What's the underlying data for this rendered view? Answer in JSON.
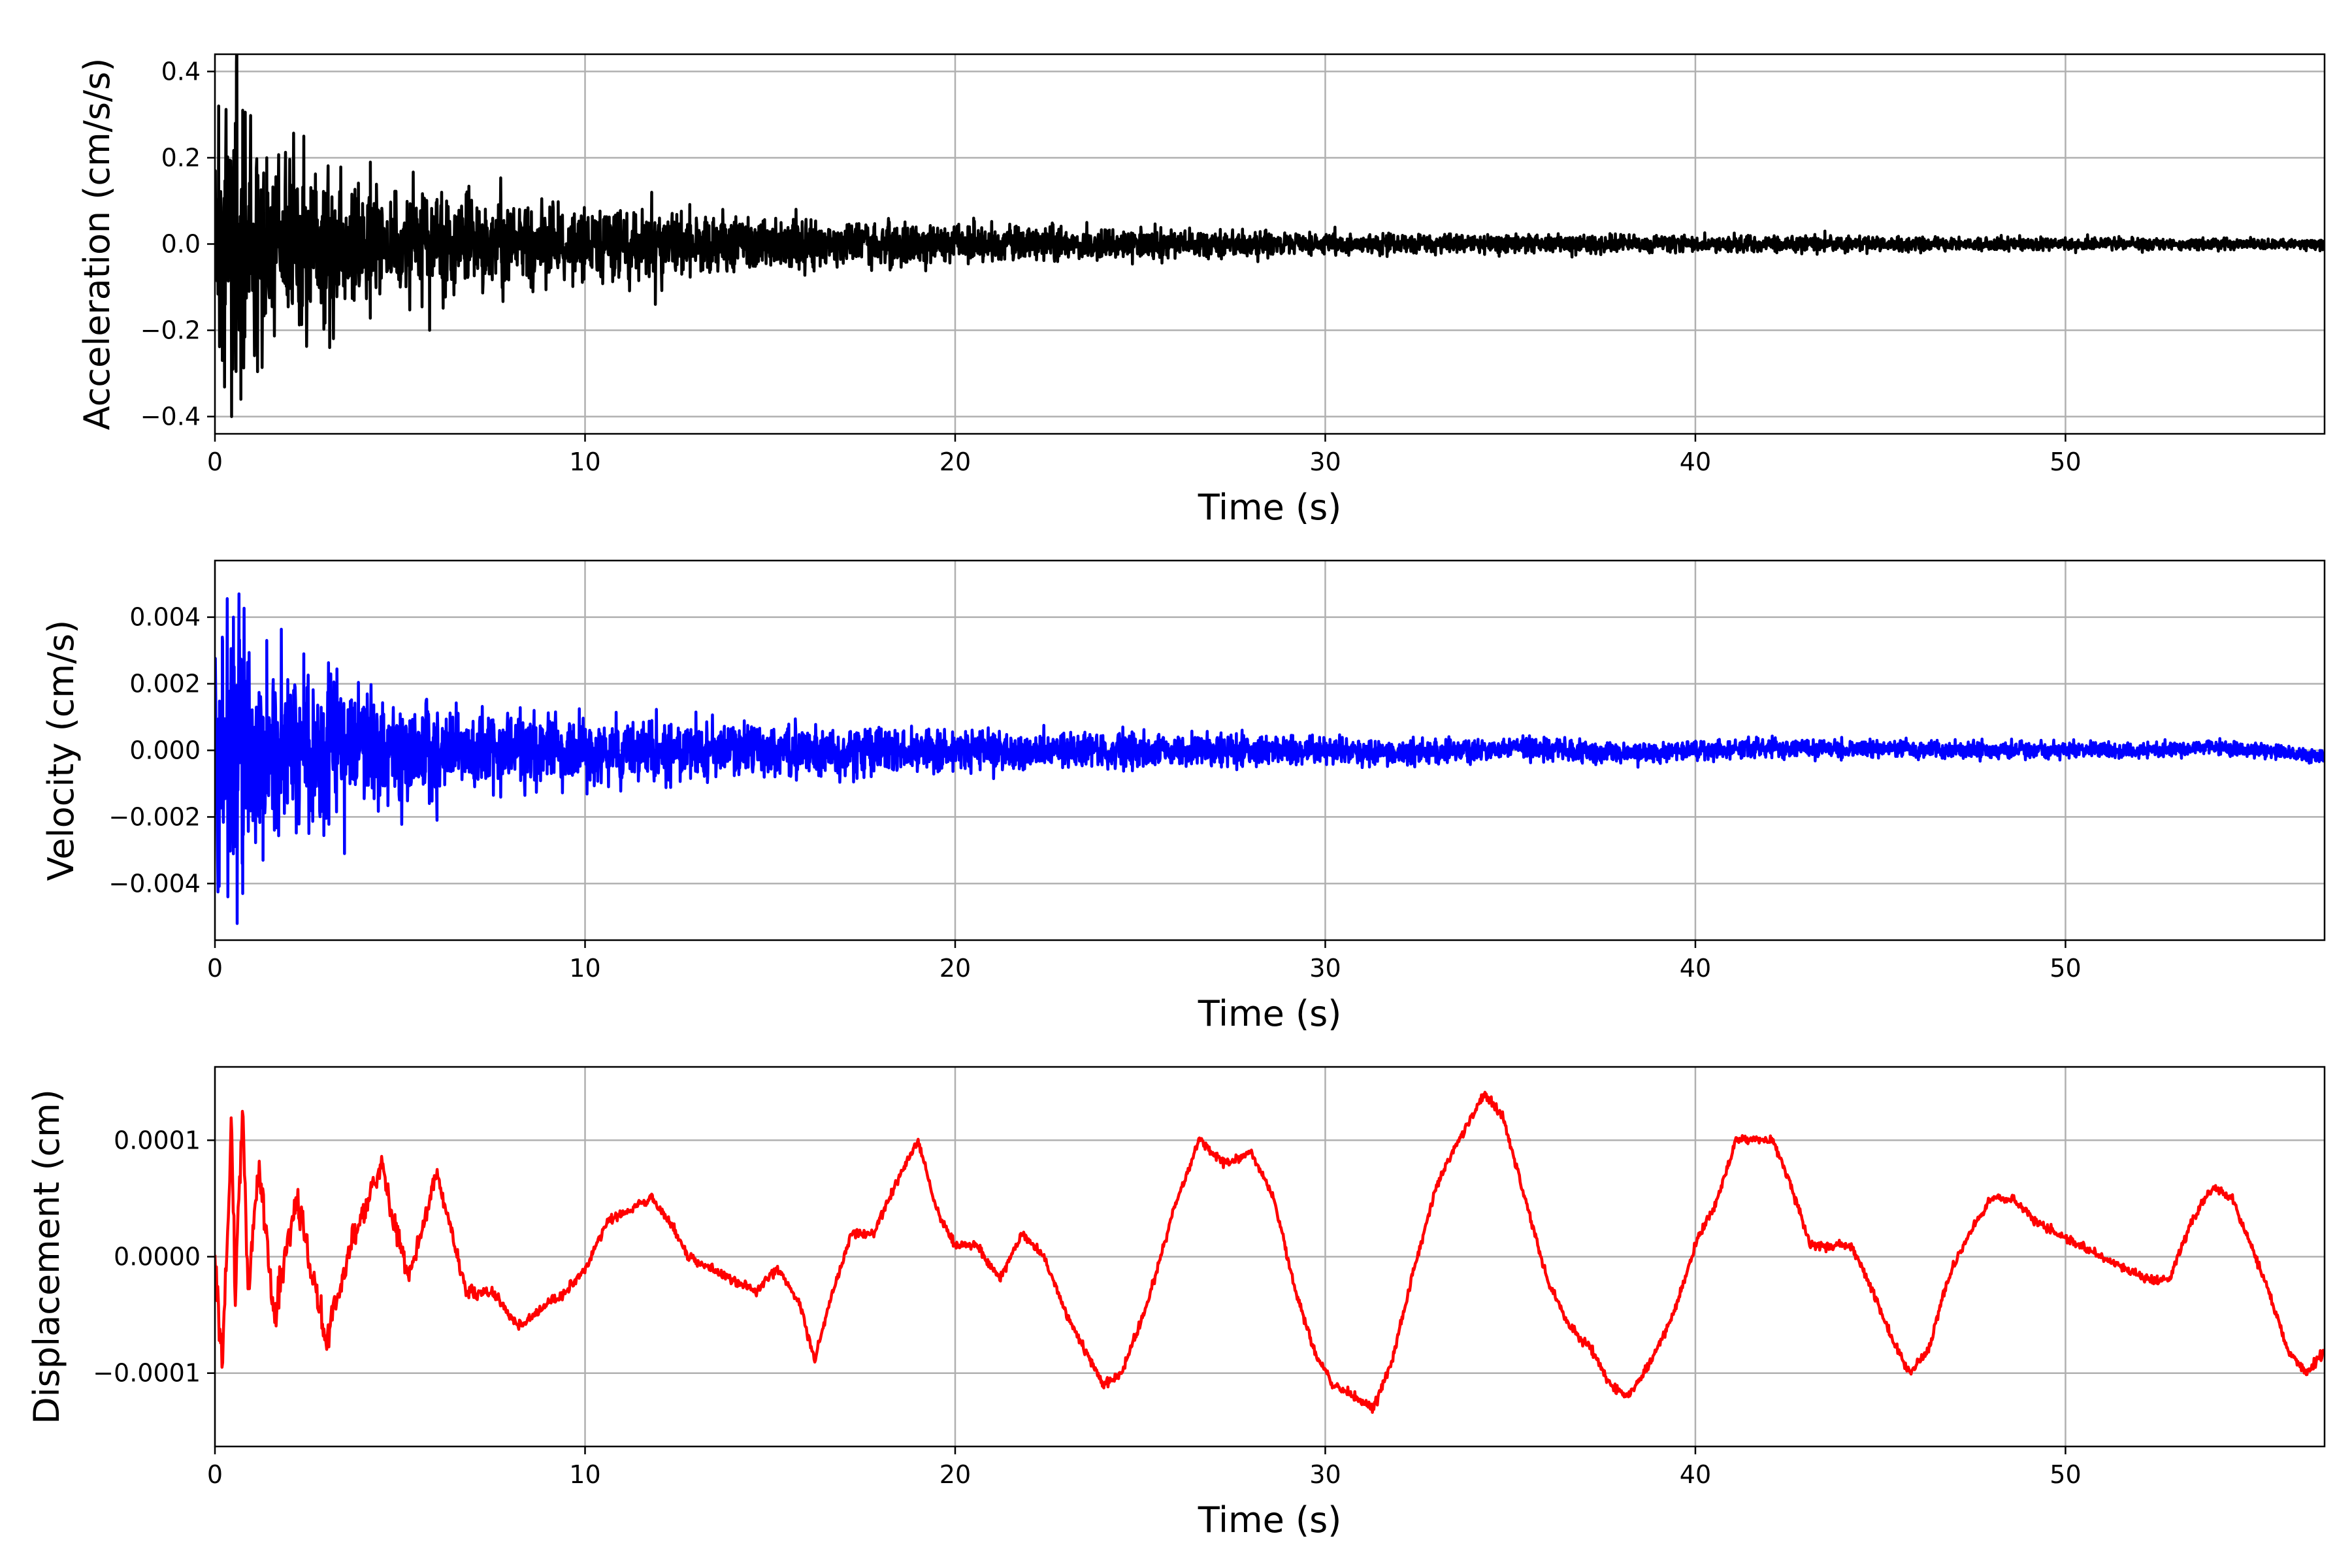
{
  "chart_data": [
    {
      "type": "line",
      "xlabel": "Time (s)",
      "ylabel": "Acceleration (cm/s/s)",
      "xlim": [
        0,
        57
      ],
      "ylim": [
        -0.44,
        0.44
      ],
      "x_ticks": [
        0,
        10,
        20,
        30,
        40,
        50
      ],
      "y_ticks": [
        -0.4,
        -0.2,
        0.0,
        0.2,
        0.4
      ],
      "y_tick_labels": [
        "−0.4",
        "−0.2",
        "0.0",
        "0.2",
        "0.4"
      ],
      "grid": true,
      "color": "#000000",
      "envelope": [
        [
          0,
          0.33
        ],
        [
          0.6,
          0.38
        ],
        [
          1.5,
          0.24
        ],
        [
          3,
          0.2
        ],
        [
          5,
          0.15
        ],
        [
          8,
          0.12
        ],
        [
          10,
          0.1
        ],
        [
          12,
          0.09
        ],
        [
          15,
          0.07
        ],
        [
          20,
          0.05
        ],
        [
          25,
          0.04
        ],
        [
          30,
          0.03
        ],
        [
          40,
          0.022
        ],
        [
          50,
          0.017
        ],
        [
          57,
          0.015
        ]
      ],
      "peaks": [
        [
          0.1,
          0.32
        ],
        [
          0.2,
          -0.27
        ],
        [
          0.45,
          -0.4
        ],
        [
          0.55,
          0.28
        ],
        [
          0.7,
          -0.36
        ],
        [
          0.75,
          0.31
        ],
        [
          1.4,
          0.2
        ],
        [
          2.4,
          0.25
        ],
        [
          3.1,
          -0.24
        ],
        [
          4.2,
          0.19
        ],
        [
          5.8,
          -0.2
        ],
        [
          11.8,
          0.12
        ],
        [
          11.9,
          -0.14
        ],
        [
          20.5,
          0.06
        ],
        [
          43.5,
          0.03
        ]
      ]
    },
    {
      "type": "line",
      "xlabel": "Time (s)",
      "ylabel": "Velocity (cm/s)",
      "xlim": [
        0,
        57
      ],
      "ylim": [
        -0.0057,
        0.0057
      ],
      "x_ticks": [
        0,
        10,
        20,
        30,
        40,
        50
      ],
      "y_ticks": [
        -0.004,
        -0.002,
        0.0,
        0.002,
        0.004
      ],
      "y_tick_labels": [
        "−0.004",
        "−0.002",
        "0.000",
        "0.002",
        "0.004"
      ],
      "grid": true,
      "color": "#0000ff",
      "envelope": [
        [
          0,
          0.0045
        ],
        [
          0.6,
          0.005
        ],
        [
          1.5,
          0.0032
        ],
        [
          3,
          0.0025
        ],
        [
          5,
          0.0018
        ],
        [
          8,
          0.0013
        ],
        [
          10,
          0.0011
        ],
        [
          15,
          0.0009
        ],
        [
          20,
          0.0007
        ],
        [
          25,
          0.0006
        ],
        [
          30,
          0.00045
        ],
        [
          40,
          0.00035
        ],
        [
          50,
          0.00028
        ],
        [
          57,
          0.00025
        ]
      ],
      "drift": [
        [
          0,
          0
        ],
        [
          30,
          0
        ],
        [
          32,
          -0.0001
        ],
        [
          35,
          0.0001
        ],
        [
          38,
          -0.0001
        ],
        [
          42,
          0.0001
        ],
        [
          47,
          0
        ],
        [
          52,
          0
        ],
        [
          54,
          0.0001
        ],
        [
          57,
          -0.0002
        ]
      ],
      "peaks": [
        [
          0.2,
          0.0034
        ],
        [
          0.35,
          -0.0044
        ],
        [
          0.5,
          0.004
        ],
        [
          0.6,
          -0.0052
        ],
        [
          0.65,
          0.0047
        ],
        [
          0.75,
          -0.0043
        ],
        [
          1.4,
          0.0033
        ],
        [
          1.3,
          -0.0033
        ],
        [
          2.4,
          0.0029
        ],
        [
          3.5,
          -0.0031
        ],
        [
          6.0,
          -0.0021
        ]
      ]
    },
    {
      "type": "line",
      "xlabel": "Time (s)",
      "ylabel": "Displacement (cm)",
      "xlim": [
        0,
        57
      ],
      "ylim": [
        -0.000163,
        0.000163
      ],
      "x_ticks": [
        0,
        10,
        20,
        30,
        40,
        50
      ],
      "y_ticks": [
        -0.0001,
        0.0,
        0.0001
      ],
      "y_tick_labels": [
        "−0.0001",
        "0.0000",
        "0.0001"
      ],
      "grid": true,
      "color": "#ff0000",
      "x": [
        0,
        0.2,
        0.45,
        0.55,
        0.75,
        0.9,
        1.2,
        1.6,
        2.2,
        3.0,
        3.8,
        4.5,
        5.2,
        6.0,
        6.8,
        7.5,
        8.2,
        9.0,
        9.5,
        10.0,
        10.6,
        11.2,
        11.8,
        12.3,
        12.8,
        13.4,
        14.0,
        14.6,
        15.2,
        15.8,
        16.2,
        16.6,
        17.2,
        17.8,
        18.5,
        19.0,
        19.5,
        20.0,
        20.6,
        21.2,
        21.8,
        22.4,
        23.0,
        23.5,
        24.0,
        24.5,
        25.2,
        25.9,
        26.6,
        27.3,
        28.0,
        28.6,
        29.2,
        29.7,
        30.2,
        30.8,
        31.3,
        31.8,
        32.4,
        33.0,
        33.6,
        34.3,
        34.8,
        35.4,
        36.0,
        36.6,
        37.2,
        37.7,
        38.2,
        38.8,
        39.4,
        40.0,
        40.6,
        41.1,
        41.6,
        42.1,
        42.6,
        43.1,
        43.6,
        44.2,
        44.8,
        45.3,
        45.8,
        46.3,
        46.8,
        47.4,
        48.0,
        48.6,
        49.2,
        49.8,
        50.4,
        51.0,
        51.6,
        52.2,
        52.8,
        53.4,
        54.0,
        54.5,
        55.0,
        55.5,
        56.0,
        56.5,
        57.0
      ],
      "y": [
        0.0,
        -0.0001,
        0.00012,
        -4e-05,
        0.00013,
        -3e-05,
        8e-05,
        -5e-05,
        5e-05,
        -7e-05,
        2e-05,
        8e-05,
        -2e-05,
        7e-05,
        -3e-05,
        -3e-05,
        -6e-05,
        -4e-05,
        -3e-05,
        -1e-05,
        3e-05,
        4e-05,
        5e-05,
        3e-05,
        0.0,
        -1e-05,
        -2e-05,
        -3e-05,
        -1e-05,
        -4e-05,
        -9e-05,
        -4e-05,
        2e-05,
        2e-05,
        7e-05,
        0.0001,
        4e-05,
        1e-05,
        1e-05,
        -2e-05,
        2e-05,
        0.0,
        -5e-05,
        -8e-05,
        -0.00011,
        -0.0001,
        -4e-05,
        4e-05,
        0.0001,
        8e-05,
        9e-05,
        5e-05,
        -3e-05,
        -8e-05,
        -0.00011,
        -0.00012,
        -0.00013,
        -9e-05,
        -1e-05,
        6e-05,
        0.0001,
        0.00014,
        0.00012,
        5e-05,
        -2e-05,
        -6e-05,
        -8e-05,
        -0.00011,
        -0.00012,
        -9e-05,
        -5e-05,
        1e-05,
        5e-05,
        0.0001,
        0.0001,
        0.0001,
        6e-05,
        1e-05,
        1e-05,
        1e-05,
        -3e-05,
        -7e-05,
        -0.0001,
        -8e-05,
        -2e-05,
        2e-05,
        5e-05,
        5e-05,
        3e-05,
        2e-05,
        1e-05,
        0.0,
        -1e-05,
        -2e-05,
        -2e-05,
        3e-05,
        6e-05,
        5e-05,
        1e-05,
        -3e-05,
        -8e-05,
        -0.0001,
        -8e-05
      ]
    }
  ]
}
